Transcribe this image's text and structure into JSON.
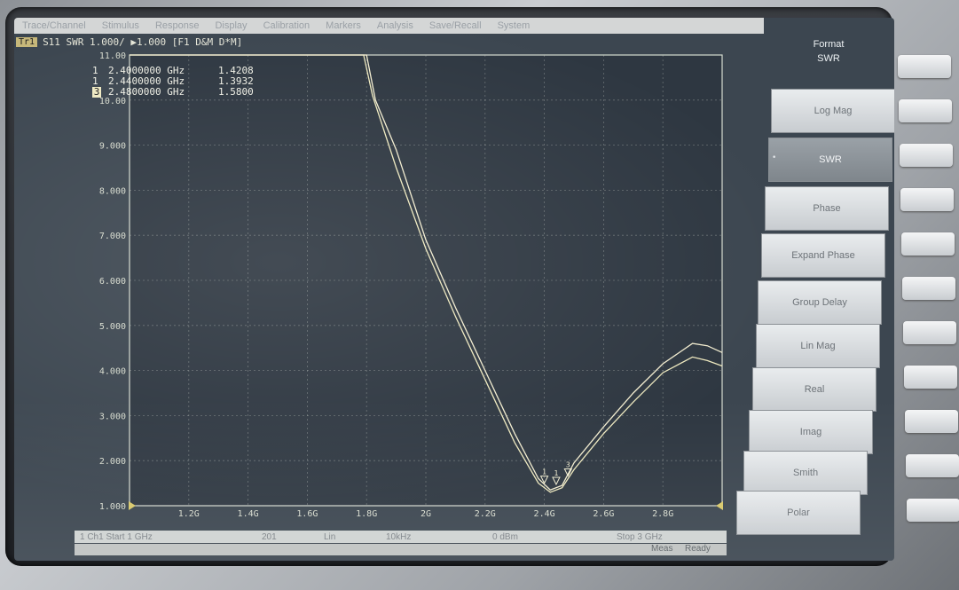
{
  "menu": [
    "Trace/Channel",
    "Stimulus",
    "Response",
    "Display",
    "Calibration",
    "Markers",
    "Analysis",
    "Save/Recall",
    "System"
  ],
  "trace_header": {
    "badge": "Tr1",
    "info": "S11  SWR  1.000/  ▶1.000  [F1 D&M D*M]"
  },
  "markers": [
    {
      "id": "1",
      "freq": "2.4000000 GHz",
      "value": "1.4208",
      "active": false
    },
    {
      "id": "1",
      "freq": "2.4400000 GHz",
      "value": "1.3932",
      "active": false
    },
    {
      "id": "3",
      "freq": "2.4800000 GHz",
      "value": "1.5800",
      "active": true
    }
  ],
  "y_axis": {
    "labels": [
      "11.00",
      "10.00",
      "9.000",
      "8.000",
      "7.000",
      "6.000",
      "5.000",
      "4.000",
      "3.000",
      "2.000",
      "1.000"
    ]
  },
  "x_axis": {
    "labels": [
      "1.2G",
      "1.4G",
      "1.6G",
      "1.8G",
      "2G",
      "2.2G",
      "2.4G",
      "2.6G",
      "2.8G"
    ]
  },
  "statusbar": {
    "channel": "1  Ch1  Start 1 GHz",
    "points": "201",
    "sweep_type": "Lin",
    "ifbw": "10kHz",
    "power": "0 dBm",
    "stop": "Stop 3 GHz"
  },
  "statusbar2": {
    "meas": "Meas",
    "ready": "Ready"
  },
  "softkeys": {
    "title": [
      "Format",
      "SWR"
    ],
    "items": [
      {
        "label": "Log Mag",
        "selected": false
      },
      {
        "label": "SWR",
        "selected": true
      },
      {
        "label": "Phase",
        "selected": false
      },
      {
        "label": "Expand Phase",
        "selected": false
      },
      {
        "label": "Group Delay",
        "selected": false
      },
      {
        "label": "Lin Mag",
        "selected": false
      },
      {
        "label": "Real",
        "selected": false
      },
      {
        "label": "Imag",
        "selected": false
      },
      {
        "label": "Smith",
        "selected": false
      },
      {
        "label": "Polar",
        "selected": false
      }
    ]
  },
  "chart_data": {
    "type": "line",
    "xlim": [
      1.0,
      3.0
    ],
    "ylim": [
      1.0,
      11.0
    ],
    "grid": true,
    "series": [
      {
        "x": [
          1.0,
          1.5,
          1.79,
          1.82,
          1.9,
          2.0,
          2.1,
          2.2,
          2.3,
          2.38,
          2.42,
          2.46,
          2.5,
          2.6,
          2.7,
          2.8,
          2.9,
          2.95,
          3.0
        ],
        "y": [
          11.0,
          11.0,
          11.0,
          10.1,
          8.5,
          6.7,
          5.2,
          3.8,
          2.4,
          1.5,
          1.3,
          1.4,
          1.8,
          2.6,
          3.3,
          3.95,
          4.3,
          4.22,
          4.1
        ]
      },
      {
        "x": [
          1.0,
          1.5,
          1.8,
          1.83,
          1.9,
          2.0,
          2.1,
          2.2,
          2.3,
          2.38,
          2.42,
          2.46,
          2.5,
          2.6,
          2.7,
          2.8,
          2.9,
          2.95,
          3.0
        ],
        "y": [
          11.0,
          11.0,
          11.0,
          10.0,
          8.9,
          6.9,
          5.4,
          4.0,
          2.6,
          1.6,
          1.35,
          1.45,
          1.95,
          2.75,
          3.5,
          4.15,
          4.6,
          4.55,
          4.4
        ]
      }
    ],
    "marker_points": [
      {
        "x": 2.4,
        "y": 1.4208,
        "label": "1"
      },
      {
        "x": 2.44,
        "y": 1.3932,
        "label": "1"
      },
      {
        "x": 2.48,
        "y": 1.58,
        "label": "3"
      }
    ]
  }
}
